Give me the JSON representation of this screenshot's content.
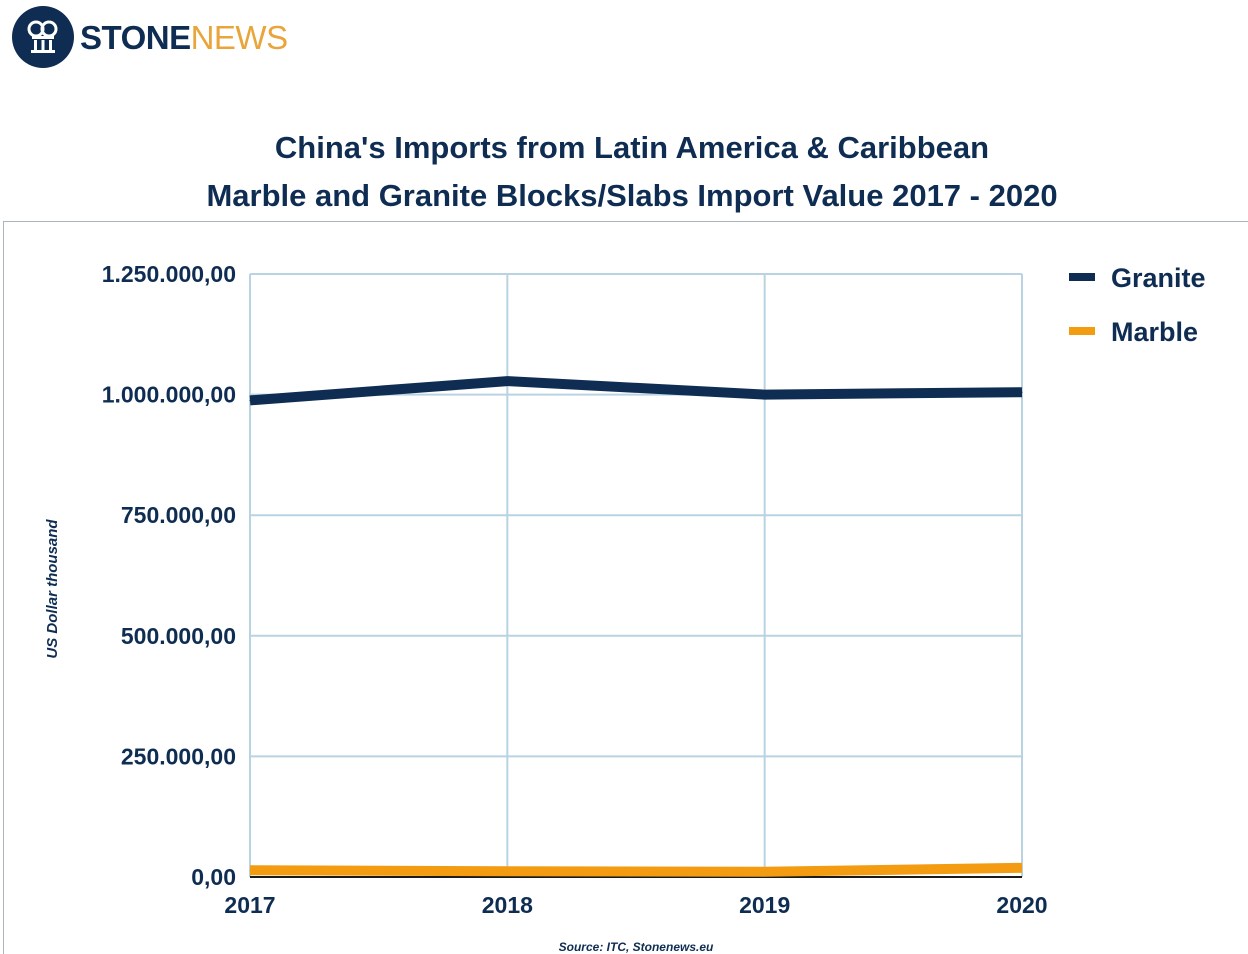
{
  "logo": {
    "brand_part1": "STONE",
    "brand_part2": "NEWS",
    "icon": "column-logo-icon"
  },
  "colors": {
    "navy": "#0f2d52",
    "orange": "#f39c12",
    "grid": "#b9d3e3"
  },
  "chart_data": {
    "type": "line",
    "title": "China's Imports from Latin America & Caribbean",
    "subtitle": "Marble and Granite Blocks/Slabs Import Value 2017 - 2020",
    "xlabel": "",
    "ylabel": "US Dollar thousand",
    "categories": [
      "2017",
      "2018",
      "2019",
      "2020"
    ],
    "series": [
      {
        "name": "Granite",
        "color": "#0f2d52",
        "values": [
          988000,
          1028000,
          1000000,
          1005000
        ]
      },
      {
        "name": "Marble",
        "color": "#f39c12",
        "values": [
          14000,
          12000,
          11000,
          19000
        ]
      }
    ],
    "ylim": [
      0,
      1250000
    ],
    "yticks": [
      "0,00",
      "250.000,00",
      "500.000,00",
      "750.000,00",
      "1.000.000,00",
      "1.250.000,00"
    ],
    "grid": true,
    "legend_position": "right",
    "source": "Source: ITC, Stonenews.eu"
  }
}
